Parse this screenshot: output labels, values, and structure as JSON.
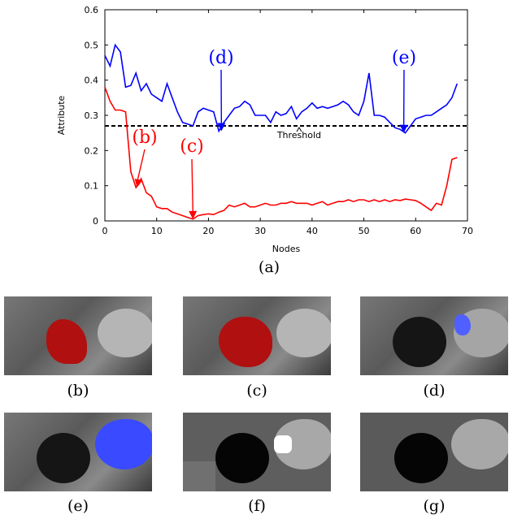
{
  "chart_data": {
    "type": "line",
    "xlabel": "Nodes",
    "ylabel": "Attribute",
    "xlim": [
      0,
      70
    ],
    "ylim": [
      0,
      0.6
    ],
    "xticks": [
      "0",
      "10",
      "20",
      "30",
      "40",
      "50",
      "60",
      "70"
    ],
    "yticks": [
      "0",
      "0.1",
      "0.2",
      "0.3",
      "0.4",
      "0.5",
      "0.6"
    ],
    "grid": false,
    "threshold": {
      "y": 0.27,
      "label": "Threshold",
      "label_x": 37.5,
      "label_y": 0.245
    },
    "series": [
      {
        "color": "#0000ff",
        "x": [
          0,
          1,
          2,
          3,
          4,
          5,
          6,
          7,
          8,
          9,
          10,
          11,
          12,
          13,
          14,
          15,
          16,
          17,
          18,
          19,
          20,
          21,
          22,
          23,
          24,
          25,
          26,
          27,
          28,
          29,
          30,
          31,
          32,
          33,
          34,
          35,
          36,
          37,
          38,
          39,
          40,
          41,
          42,
          43,
          44,
          45,
          46,
          47,
          48,
          49,
          50,
          51,
          52,
          53,
          54,
          55,
          56,
          57,
          58,
          59,
          60,
          61,
          62,
          63,
          64,
          65,
          66,
          67,
          68
        ],
        "values": [
          0.47,
          0.44,
          0.5,
          0.48,
          0.38,
          0.385,
          0.42,
          0.37,
          0.39,
          0.36,
          0.35,
          0.34,
          0.39,
          0.35,
          0.31,
          0.28,
          0.275,
          0.27,
          0.31,
          0.32,
          0.315,
          0.31,
          0.255,
          0.28,
          0.3,
          0.32,
          0.325,
          0.34,
          0.33,
          0.3,
          0.3,
          0.3,
          0.28,
          0.31,
          0.3,
          0.305,
          0.325,
          0.29,
          0.31,
          0.32,
          0.335,
          0.32,
          0.325,
          0.32,
          0.325,
          0.33,
          0.34,
          0.33,
          0.31,
          0.3,
          0.34,
          0.42,
          0.3,
          0.3,
          0.295,
          0.28,
          0.265,
          0.26,
          0.25,
          0.27,
          0.29,
          0.295,
          0.3,
          0.3,
          0.31,
          0.32,
          0.33,
          0.35,
          0.39
        ]
      },
      {
        "color": "#ff0000",
        "x": [
          0,
          1,
          2,
          3,
          4,
          5,
          6,
          7,
          8,
          9,
          10,
          11,
          12,
          13,
          14,
          15,
          16,
          17,
          18,
          19,
          20,
          21,
          22,
          23,
          24,
          25,
          26,
          27,
          28,
          29,
          30,
          31,
          32,
          33,
          34,
          35,
          36,
          37,
          38,
          39,
          40,
          41,
          42,
          43,
          44,
          45,
          46,
          47,
          48,
          49,
          50,
          51,
          52,
          53,
          54,
          55,
          56,
          57,
          58,
          59,
          60,
          61,
          62,
          63,
          64,
          65,
          66,
          67,
          68
        ],
        "values": [
          0.38,
          0.34,
          0.315,
          0.315,
          0.31,
          0.14,
          0.095,
          0.12,
          0.08,
          0.07,
          0.04,
          0.035,
          0.035,
          0.025,
          0.02,
          0.015,
          0.01,
          0.005,
          0.015,
          0.018,
          0.02,
          0.018,
          0.025,
          0.03,
          0.045,
          0.04,
          0.045,
          0.05,
          0.04,
          0.04,
          0.045,
          0.05,
          0.045,
          0.045,
          0.05,
          0.05,
          0.055,
          0.05,
          0.05,
          0.05,
          0.045,
          0.05,
          0.055,
          0.045,
          0.05,
          0.055,
          0.055,
          0.06,
          0.055,
          0.06,
          0.06,
          0.055,
          0.06,
          0.055,
          0.06,
          0.055,
          0.06,
          0.058,
          0.062,
          0.06,
          0.058,
          0.05,
          0.04,
          0.03,
          0.05,
          0.045,
          0.1,
          0.175,
          0.18
        ]
      }
    ],
    "annotations": [
      {
        "label": "(b)",
        "color": "#ff0000",
        "x": 6.2,
        "y": 0.095
      },
      {
        "label": "(c)",
        "color": "#ff0000",
        "x": 17,
        "y": 0.005
      },
      {
        "label": "(d)",
        "color": "#0000ff",
        "x": 22.5,
        "y": 0.255
      },
      {
        "label": "(e)",
        "color": "#0000ff",
        "x": 57.7,
        "y": 0.25
      }
    ]
  },
  "figure": {
    "caption": "(a)"
  },
  "panels": [
    {
      "caption": "(b)"
    },
    {
      "caption": "(c)"
    },
    {
      "caption": "(d)"
    },
    {
      "caption": "(e)"
    },
    {
      "caption": "(f)"
    },
    {
      "caption": "(g)"
    }
  ]
}
